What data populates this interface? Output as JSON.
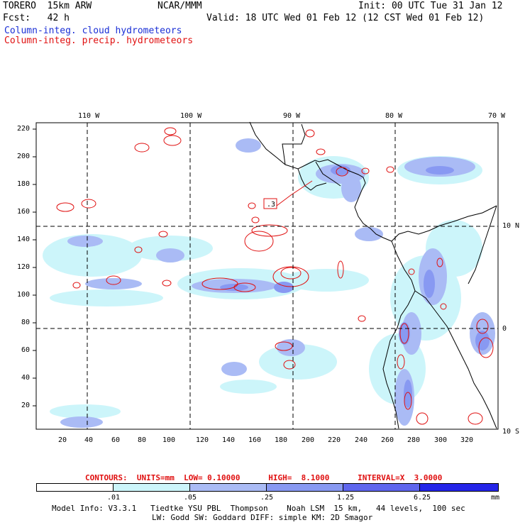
{
  "header": {
    "left_line1": "TORERO  15km ARW",
    "left_line2": "Fcst:   42 h",
    "center": "NCAR/MMM",
    "init": "Init: 00 UTC Tue 31 Jan 12",
    "valid": "Valid: 18 UTC Wed 01 Feb 12 (12 CST Wed 01 Feb 12)",
    "field1": "Column-integ. cloud hydrometeors",
    "field2": "Column-integ. precip. hydrometeors"
  },
  "axes": {
    "lon_labels": [
      "110 W",
      "100 W",
      "90 W",
      "80 W",
      "70 W"
    ],
    "lat_labels": [
      "10 N",
      "0",
      "10 S"
    ],
    "y_ticks": [
      "220",
      "200",
      "180",
      "160",
      "140",
      "120",
      "100",
      "80",
      "60",
      "40",
      "20"
    ],
    "x_ticks": [
      "20",
      "40",
      "60",
      "80",
      "100",
      "120",
      "140",
      "160",
      "180",
      "200",
      "220",
      "240",
      "260",
      "280",
      "300",
      "320"
    ]
  },
  "contour_box_label": ".3",
  "contour_note": "CONTOURS:  UNITS=mm  LOW= 0.10000      HIGH=  8.1000      INTERVAL=X  3.0000",
  "colorbar": {
    "colors": [
      "#ffffff",
      "#ccf5fa",
      "#aabbf5",
      "#8899f2",
      "#5f66ee",
      "#2424e8"
    ],
    "labels": [
      ".01",
      ".05",
      ".25",
      "1.25",
      "6.25"
    ],
    "unit": "mm"
  },
  "footer": {
    "line1": "Model Info: V3.3.1   Tiedtke YSU PBL  Thompson    Noah LSM  15 km,   44 levels,  100 sec",
    "line2": "LW: Godd SW: Goddard DIFF: simple KM: 2D Smagor"
  }
}
